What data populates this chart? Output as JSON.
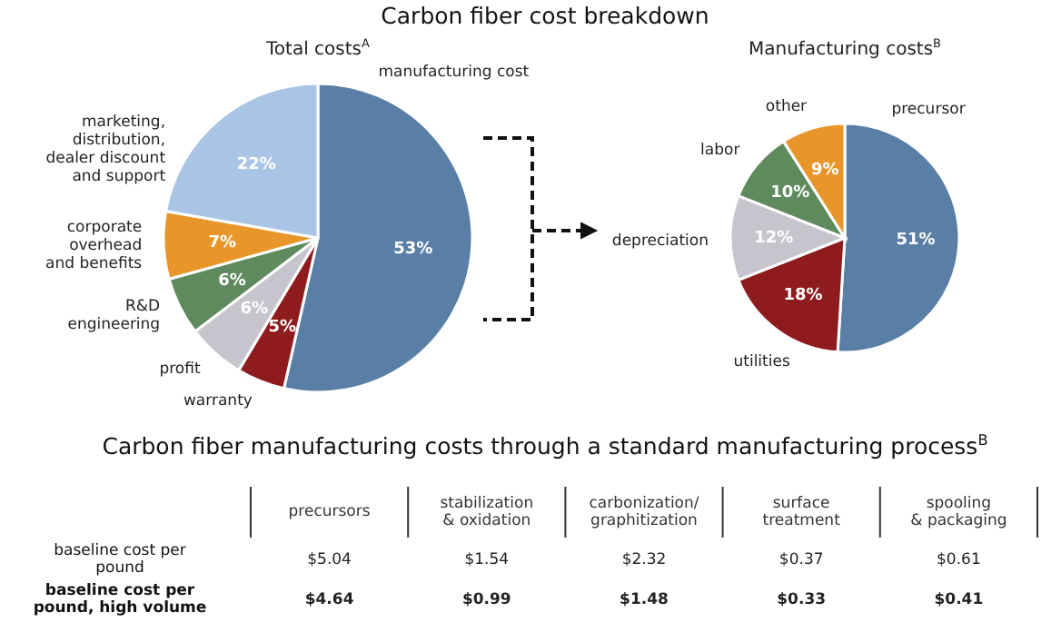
{
  "chart_data": [
    {
      "type": "pie",
      "title": "Carbon fiber cost breakdown",
      "subtitle": "Total costs$^{A}$",
      "categories": [
        "manufacturing cost",
        "warranty",
        "profit",
        "R&D\nengineering",
        "corporate\noverhead\nand benefits",
        "marketing,\ndistribution,\ndealer discount\nand support"
      ],
      "values": [
        53,
        5,
        6,
        6,
        7,
        22
      ],
      "value_labels": [
        "53%",
        "5%",
        "6%",
        "6%",
        "7%",
        "22%"
      ],
      "colors": [
        "#5a7fa6",
        "#8e1c1e",
        "#c6c4cc",
        "#5f8a5d",
        "#e8962a",
        "#a9c4e4"
      ]
    },
    {
      "type": "pie",
      "title": "Manufacturing costs$^{B}$",
      "categories": [
        "precursor",
        "utilities",
        "depreciation",
        "labor",
        "other"
      ],
      "values": [
        51,
        18,
        12,
        10,
        9
      ],
      "value_labels": [
        "51%",
        "18%",
        "12%",
        "10%",
        "9%"
      ],
      "colors": [
        "#5a7fa6",
        "#8e1c1e",
        "#c6c4cc",
        "#5f8a5d",
        "#e8962a"
      ]
    },
    {
      "type": "other",
      "title": "Carbon fiber manufacturing costs through a standard manufacturing process$^{B}$",
      "categories": [
        "precursors",
        "stabilization\n& oxidation",
        "carbonization/\ngraphitization",
        "surface\ntreatment",
        "spooling\n& packaging"
      ],
      "series": [
        {
          "name": "baseline cost per\npound",
          "values": [
            5.04,
            1.54,
            2.32,
            0.37,
            0.61
          ],
          "value_labels": [
            "$5.04",
            "$1.54",
            "$2.32",
            "$0.37",
            "$0.61"
          ]
        },
        {
          "name": "baseline cost per\npound, high volume",
          "values": [
            4.64,
            0.99,
            1.48,
            0.33,
            0.41
          ],
          "value_labels": [
            "$4.64",
            "$0.99",
            "$1.48",
            "$0.33",
            "$0.41"
          ]
        }
      ]
    }
  ]
}
